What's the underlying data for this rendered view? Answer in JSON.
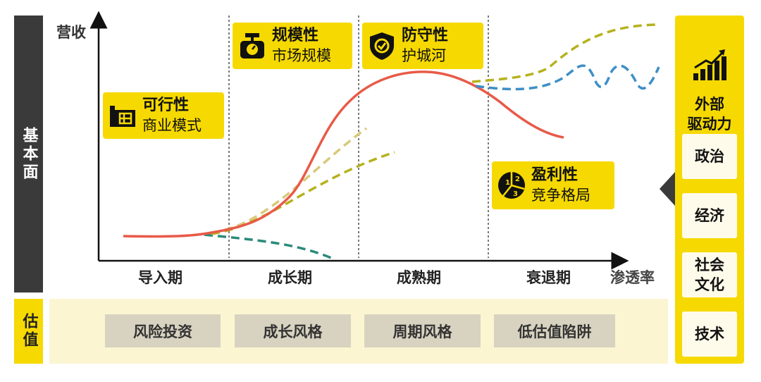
{
  "side_label": "基本面",
  "valuation": {
    "label": "估值",
    "styles": [
      "风险投资",
      "成长风格",
      "周期风格",
      "低估值陷阱"
    ]
  },
  "axes": {
    "y_label": "营收",
    "x_label": "渗透率"
  },
  "phases": [
    "导入期",
    "成长期",
    "成熟期",
    "衰退期"
  ],
  "cards": [
    {
      "title": "可行性",
      "subtitle": "商业模式",
      "icon": "blueprint-icon"
    },
    {
      "title": "规模性",
      "subtitle": "市场规模",
      "icon": "scale-icon"
    },
    {
      "title": "防守性",
      "subtitle": "护城河",
      "icon": "shield-icon"
    },
    {
      "title": "盈利性",
      "subtitle": "竞争格局",
      "icon": "pie-chart-icon"
    }
  ],
  "external": {
    "title_line1": "外部",
    "title_line2": "驱动力",
    "icon": "bar-chart-growth-icon",
    "factors": [
      "政治",
      "经济",
      "社会\n文化",
      "技术"
    ]
  },
  "colors": {
    "accent_yellow": "#f6d900",
    "dark_gray": "#3a3a3a",
    "main_curve_red": "#e85a47",
    "dashed_olive": "#b5b21e",
    "dashed_blue": "#3d8fc6",
    "dashed_teal": "#2a8a7a",
    "valuation_band": "#fbf5d2",
    "style_box_gray": "#d8d3c0"
  }
}
